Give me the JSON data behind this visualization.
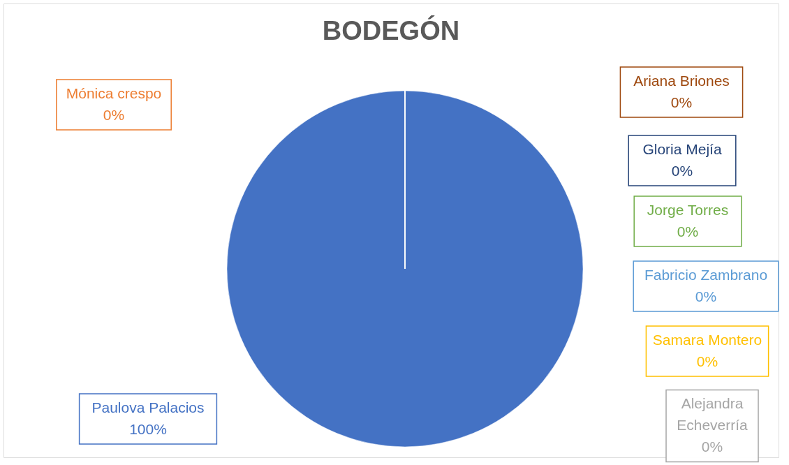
{
  "chart_data": {
    "type": "pie",
    "title": "BODEGÓN",
    "categories": [
      "Paulova Palacios",
      "Mónica crespo",
      "Alejandra Echeverría",
      "Samara Montero",
      "Fabricio Zambrano",
      "Jorge Torres",
      "Gloria Mejía",
      "Ariana Briones"
    ],
    "values": [
      100,
      0,
      0,
      0,
      0,
      0,
      0,
      0
    ],
    "colors": [
      "#4472c4",
      "#ed7d31",
      "#a5a5a5",
      "#ffc000",
      "#5b9bd5",
      "#70ad47",
      "#264478",
      "#9e480e"
    ],
    "value_labels": [
      "100%",
      "0%",
      "0%",
      "0%",
      "0%",
      "0%",
      "0%",
      "0%"
    ],
    "legend": false
  }
}
